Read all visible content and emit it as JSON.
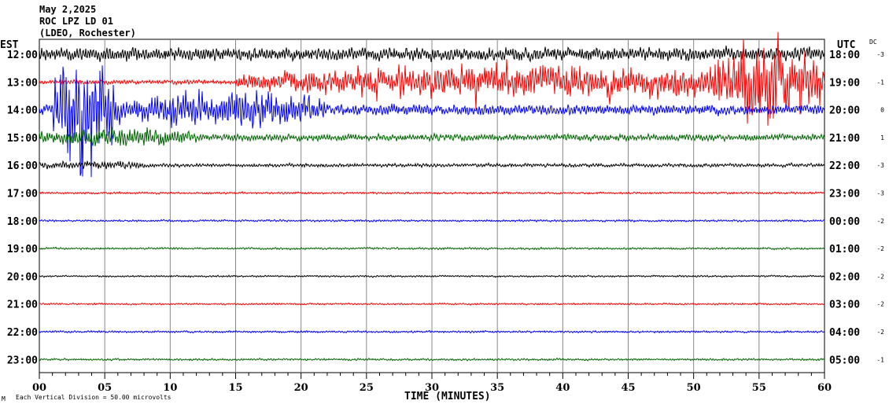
{
  "header": {
    "date": "May 2,2025",
    "station": "ROC LPZ LD 01",
    "network": "(LDEO, Rochester)"
  },
  "chart_data": {
    "type": "line",
    "title": "May 2,2025 ROC LPZ LD 01 (LDEO, Rochester)",
    "xlabel": "TIME (MINUTES)",
    "xlim": [
      0,
      60
    ],
    "x_ticks": [
      "00",
      "05",
      "10",
      "15",
      "20",
      "25",
      "30",
      "35",
      "40",
      "45",
      "50",
      "55",
      "60"
    ],
    "left_axis_title": "EST",
    "right_axis_title": "UTC",
    "dc_title": "DC",
    "scale_note": "Each Vertical Division =   50.00 microvolts",
    "corner_mark": "M",
    "colors": [
      "#000000",
      "#ff0000",
      "#0000ff",
      "#006400"
    ],
    "rows": [
      {
        "est": "12:00",
        "utc": "18:00",
        "dc": "-3",
        "base_amp": 0.45,
        "events": []
      },
      {
        "est": "13:00",
        "utc": "19:00",
        "dc": "-1",
        "base_amp": 0.15,
        "events": [
          [
            15,
            60,
            0.9
          ],
          [
            51,
            60,
            2.6
          ]
        ]
      },
      {
        "est": "14:00",
        "utc": "20:00",
        "dc": "0",
        "base_amp": 0.35,
        "events": [
          [
            1,
            6,
            3.5
          ],
          [
            6,
            22,
            0.9
          ]
        ]
      },
      {
        "est": "15:00",
        "utc": "21:00",
        "dc": "1",
        "base_amp": 0.22,
        "events": [
          [
            0,
            12,
            0.4
          ]
        ]
      },
      {
        "est": "16:00",
        "utc": "22:00",
        "dc": "-3",
        "base_amp": 0.12,
        "events": [
          [
            0,
            8,
            0.15
          ]
        ]
      },
      {
        "est": "17:00",
        "utc": "23:00",
        "dc": "-3",
        "base_amp": 0.07,
        "events": []
      },
      {
        "est": "18:00",
        "utc": "00:00",
        "dc": "-2",
        "base_amp": 0.07,
        "events": []
      },
      {
        "est": "19:00",
        "utc": "01:00",
        "dc": "-2",
        "base_amp": 0.07,
        "events": []
      },
      {
        "est": "20:00",
        "utc": "02:00",
        "dc": "-2",
        "base_amp": 0.06,
        "events": []
      },
      {
        "est": "21:00",
        "utc": "03:00",
        "dc": "-2",
        "base_amp": 0.06,
        "events": []
      },
      {
        "est": "22:00",
        "utc": "04:00",
        "dc": "-2",
        "base_amp": 0.07,
        "events": []
      },
      {
        "est": "23:00",
        "utc": "05:00",
        "dc": "-1",
        "base_amp": 0.07,
        "events": []
      }
    ]
  }
}
